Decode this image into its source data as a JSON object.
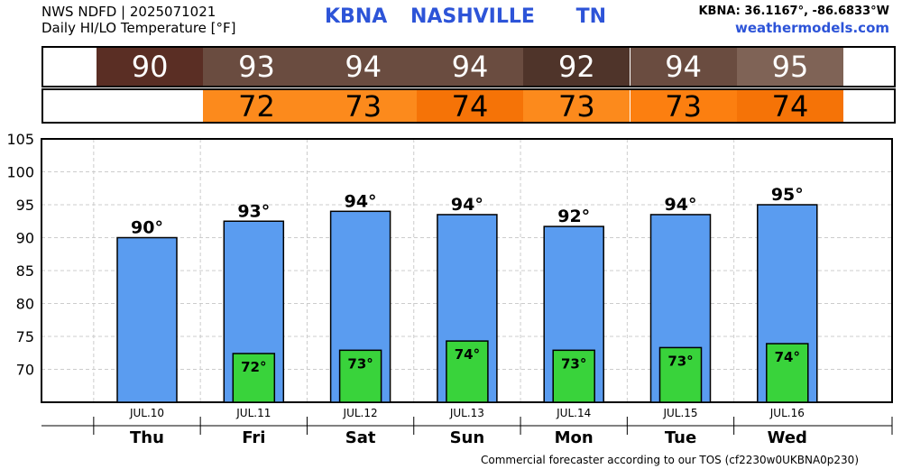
{
  "header": {
    "line1": "NWS NDFD | 2025071021",
    "line2": "Daily HI/LO Temperature [°F]",
    "station_code": "KBNA",
    "station_name": "NASHVILLE",
    "state": "TN",
    "coords": "KBNA: 36.1167°, -86.6833°W",
    "site": "weathermodels.com"
  },
  "hi_strip": {
    "values": [
      "90",
      "93",
      "94",
      "94",
      "92",
      "94",
      "95"
    ],
    "colors": [
      "#5a2e24",
      "#6a4c40",
      "#6a4c40",
      "#6a4c40",
      "#4f342a",
      "#6a4c40",
      "#7f6356"
    ]
  },
  "lo_strip": {
    "values": [
      "72",
      "73",
      "74",
      "73",
      "73",
      "74"
    ],
    "colors": [
      "#fc8a1c",
      "#fc8a1c",
      "#f57307",
      "#fc8a1c",
      "#fc7f10",
      "#f57307"
    ]
  },
  "chart_data": {
    "type": "bar",
    "days": [
      "Thu",
      "Fri",
      "Sat",
      "Sun",
      "Mon",
      "Tue",
      "Wed"
    ],
    "dates": [
      "JUL.10",
      "JUL.11",
      "JUL.12",
      "JUL.13",
      "JUL.14",
      "JUL.15",
      "JUL.16"
    ],
    "series": [
      {
        "values": [
          90,
          92.5,
          94,
          93.5,
          91.7,
          93.5,
          95
        ],
        "labels": [
          "90°",
          "93°",
          "94°",
          "94°",
          "92°",
          "94°",
          "95°"
        ],
        "color": "#5a9cf0"
      },
      {
        "values": [
          null,
          72.4,
          72.9,
          74.3,
          72.9,
          73.3,
          73.9
        ],
        "labels": [
          "",
          "72°",
          "73°",
          "74°",
          "73°",
          "73°",
          "74°"
        ],
        "color": "#39d33b"
      }
    ],
    "ylim": [
      65,
      105
    ],
    "yticks": [
      70,
      75,
      80,
      85,
      90,
      95,
      100,
      105
    ],
    "grid": true
  },
  "footer": "Commercial forecaster according to our TOS (cf2230w0UKBNA0p230)"
}
